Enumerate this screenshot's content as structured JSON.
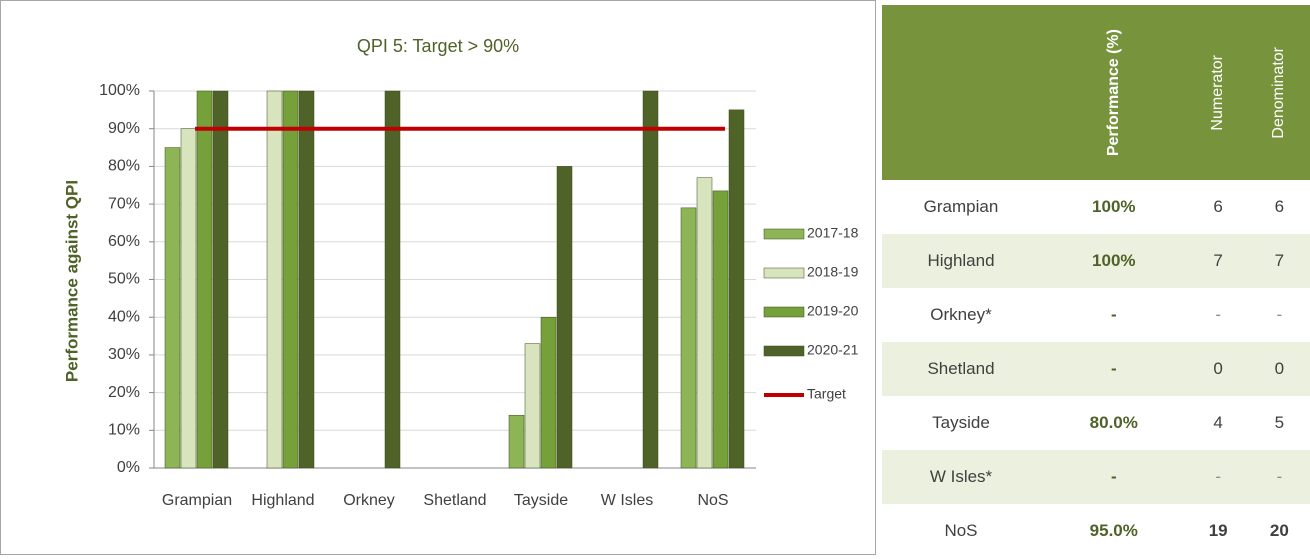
{
  "chart_data": {
    "type": "bar",
    "title": "QPI 5: Target > 90%",
    "ylabel": "Performance against QPI",
    "categories": [
      "Grampian",
      "Highland",
      "Orkney",
      "Shetland",
      "Tayside",
      "W Isles",
      "NoS"
    ],
    "series": [
      {
        "name": "2017-18",
        "color": "#8db556",
        "values": [
          85,
          null,
          null,
          null,
          14,
          null,
          69
        ]
      },
      {
        "name": "2018-19",
        "color": "#d7e4bd",
        "values": [
          90,
          100,
          null,
          null,
          33,
          null,
          77
        ]
      },
      {
        "name": "2019-20",
        "color": "#76a03a",
        "values": [
          100,
          100,
          null,
          null,
          40,
          null,
          73.5
        ]
      },
      {
        "name": "2020-21",
        "color": "#4f6228",
        "values": [
          100,
          100,
          100,
          null,
          80,
          100,
          95
        ]
      }
    ],
    "target": {
      "name": "Target",
      "value": 90,
      "color": "#c00000"
    },
    "ylim": [
      0,
      100
    ],
    "yticks": [
      {
        "value": 0,
        "label": "0%"
      },
      {
        "value": 10,
        "label": "10%"
      },
      {
        "value": 20,
        "label": "20%"
      },
      {
        "value": 30,
        "label": "30%"
      },
      {
        "value": 40,
        "label": "40%"
      },
      {
        "value": 50,
        "label": "50%"
      },
      {
        "value": 60,
        "label": "60%"
      },
      {
        "value": 70,
        "label": "70%"
      },
      {
        "value": 80,
        "label": "80%"
      },
      {
        "value": 90,
        "label": "90%"
      },
      {
        "value": 100,
        "label": "100%"
      }
    ],
    "grid": true,
    "legend": "right"
  },
  "table": {
    "columns": [
      "Performance (%)",
      "Numerator",
      "Denominator"
    ],
    "rows": [
      {
        "label": "Grampian",
        "cells": [
          "100%",
          "6",
          "6"
        ]
      },
      {
        "label": "Highland",
        "cells": [
          "100%",
          "7",
          "7"
        ]
      },
      {
        "label": "Orkney*",
        "cells": [
          "-",
          "-",
          "-"
        ]
      },
      {
        "label": "Shetland",
        "cells": [
          "-",
          "0",
          "0"
        ]
      },
      {
        "label": "Tayside",
        "cells": [
          "80.0%",
          "4",
          "5"
        ]
      },
      {
        "label": "W Isles*",
        "cells": [
          "-",
          "-",
          "-"
        ]
      },
      {
        "label": "NoS",
        "cells": [
          "95.0%",
          "19",
          "20"
        ]
      }
    ]
  }
}
